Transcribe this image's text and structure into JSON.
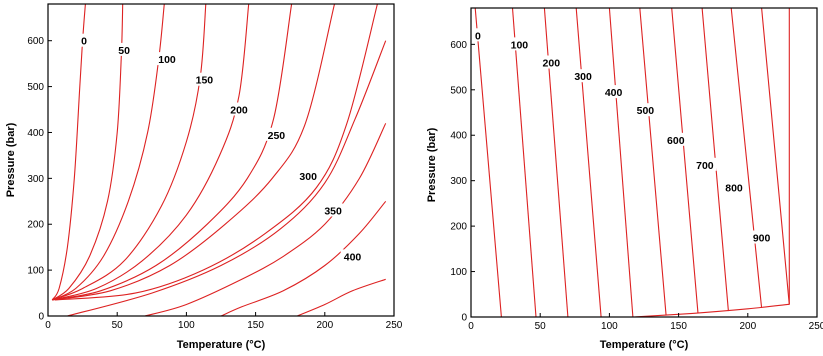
{
  "chart_data": [
    {
      "type": "line",
      "xlabel": "Temperature (°C)",
      "ylabel": "Pressure (bar)",
      "xlim": [
        0,
        250
      ],
      "ylim": [
        0,
        680
      ],
      "xticks": [
        "0",
        "50",
        "100",
        "150",
        "200",
        "250"
      ],
      "yticks": [
        "0",
        "100",
        "200",
        "300",
        "400",
        "500",
        "600"
      ],
      "grid": false,
      "line_color": "#dd2222",
      "series": [
        {
          "name": "0",
          "x": [
            27,
            25,
            23,
            19,
            14,
            8,
            3
          ],
          "y": [
            680,
            600,
            500,
            300,
            150,
            60,
            35
          ]
        },
        {
          "name": "50",
          "x": [
            54,
            53,
            50,
            43,
            30,
            15,
            3
          ],
          "y": [
            680,
            570,
            400,
            250,
            130,
            60,
            35
          ]
        },
        {
          "name": "100",
          "x": [
            84,
            80,
            72,
            58,
            40,
            20,
            3
          ],
          "y": [
            680,
            560,
            400,
            250,
            130,
            60,
            35
          ]
        },
        {
          "name": "150",
          "x": [
            114,
            110,
            100,
            82,
            55,
            25,
            3
          ],
          "y": [
            680,
            520,
            380,
            240,
            120,
            60,
            35
          ]
        },
        {
          "name": "200",
          "x": [
            145,
            138,
            124,
            100,
            68,
            35,
            3
          ],
          "y": [
            680,
            480,
            350,
            220,
            120,
            60,
            35
          ]
        },
        {
          "name": "250",
          "x": [
            176,
            163,
            144,
            115,
            78,
            38,
            3
          ],
          "y": [
            680,
            430,
            300,
            200,
            110,
            55,
            35
          ]
        },
        {
          "name": "300",
          "x": [
            207,
            186,
            162,
            128,
            88,
            45,
            3
          ],
          "y": [
            680,
            420,
            300,
            200,
            110,
            55,
            35
          ]
        },
        {
          "name": "350",
          "x": [
            238,
            216,
            194,
            157,
            112,
            63,
            5
          ],
          "y": [
            680,
            420,
            280,
            180,
            100,
            50,
            35
          ]
        },
        {
          "name": "400",
          "x": [
            244,
            222,
            200,
            168,
            125,
            75,
            14
          ],
          "y": [
            600,
            430,
            290,
            190,
            110,
            50,
            0
          ]
        },
        {
          "name": "",
          "x": [
            244,
            225,
            200,
            170,
            140,
            100,
            70
          ],
          "y": [
            420,
            300,
            200,
            130,
            80,
            25,
            0
          ]
        },
        {
          "name": "",
          "x": [
            244,
            225,
            200,
            170,
            140,
            125
          ],
          "y": [
            250,
            180,
            110,
            55,
            20,
            0
          ]
        },
        {
          "name": "",
          "x": [
            244,
            220,
            200,
            180
          ],
          "y": [
            80,
            55,
            25,
            0
          ]
        }
      ],
      "labels": [
        {
          "text": "0",
          "x": 26,
          "y": 600
        },
        {
          "text": "50",
          "x": 55,
          "y": 580
        },
        {
          "text": "100",
          "x": 86,
          "y": 560
        },
        {
          "text": "150",
          "x": 113,
          "y": 515
        },
        {
          "text": "200",
          "x": 138,
          "y": 450
        },
        {
          "text": "250",
          "x": 165,
          "y": 395
        },
        {
          "text": "300",
          "x": 188,
          "y": 305
        },
        {
          "text": "350",
          "x": 206,
          "y": 230
        },
        {
          "text": "400",
          "x": 220,
          "y": 130
        }
      ]
    },
    {
      "type": "line",
      "xlabel": "Temperature (°C)",
      "ylabel": "Pressure (bar)",
      "xlim": [
        0,
        250
      ],
      "ylim": [
        0,
        680
      ],
      "xticks": [
        "0",
        "50",
        "100",
        "150",
        "200",
        "250"
      ],
      "yticks": [
        "0",
        "100",
        "200",
        "300",
        "400",
        "500",
        "600"
      ],
      "grid": false,
      "line_color": "#dd2222",
      "series": [
        {
          "name": "0",
          "x": [
            3,
            22
          ],
          "y": [
            680,
            0
          ]
        },
        {
          "name": "100",
          "x": [
            30,
            47
          ],
          "y": [
            680,
            0
          ]
        },
        {
          "name": "200",
          "x": [
            53,
            70
          ],
          "y": [
            680,
            0
          ]
        },
        {
          "name": "300",
          "x": [
            76,
            94
          ],
          "y": [
            680,
            0
          ]
        },
        {
          "name": "400",
          "x": [
            100,
            117
          ],
          "y": [
            680,
            0
          ]
        },
        {
          "name": "500",
          "x": [
            122,
            141
          ],
          "y": [
            680,
            3
          ]
        },
        {
          "name": "600",
          "x": [
            145,
            164
          ],
          "y": [
            680,
            8
          ]
        },
        {
          "name": "700",
          "x": [
            167,
            186
          ],
          "y": [
            680,
            13
          ]
        },
        {
          "name": "800",
          "x": [
            188,
            210
          ],
          "y": [
            680,
            20
          ]
        },
        {
          "name": "900",
          "x": [
            210,
            230
          ],
          "y": [
            680,
            27
          ]
        },
        {
          "name": "",
          "x": [
            118,
            160,
            200,
            230
          ],
          "y": [
            0,
            8,
            18,
            28
          ]
        },
        {
          "name": "",
          "x": [
            230,
            230
          ],
          "y": [
            28,
            680
          ]
        }
      ],
      "labels": [
        {
          "text": "0",
          "x": 5,
          "y": 620
        },
        {
          "text": "100",
          "x": 35,
          "y": 600
        },
        {
          "text": "200",
          "x": 58,
          "y": 560
        },
        {
          "text": "300",
          "x": 81,
          "y": 530
        },
        {
          "text": "400",
          "x": 103,
          "y": 495
        },
        {
          "text": "500",
          "x": 126,
          "y": 455
        },
        {
          "text": "600",
          "x": 148,
          "y": 390
        },
        {
          "text": "700",
          "x": 169,
          "y": 335
        },
        {
          "text": "800",
          "x": 190,
          "y": 285
        },
        {
          "text": "900",
          "x": 210,
          "y": 175
        }
      ]
    }
  ]
}
